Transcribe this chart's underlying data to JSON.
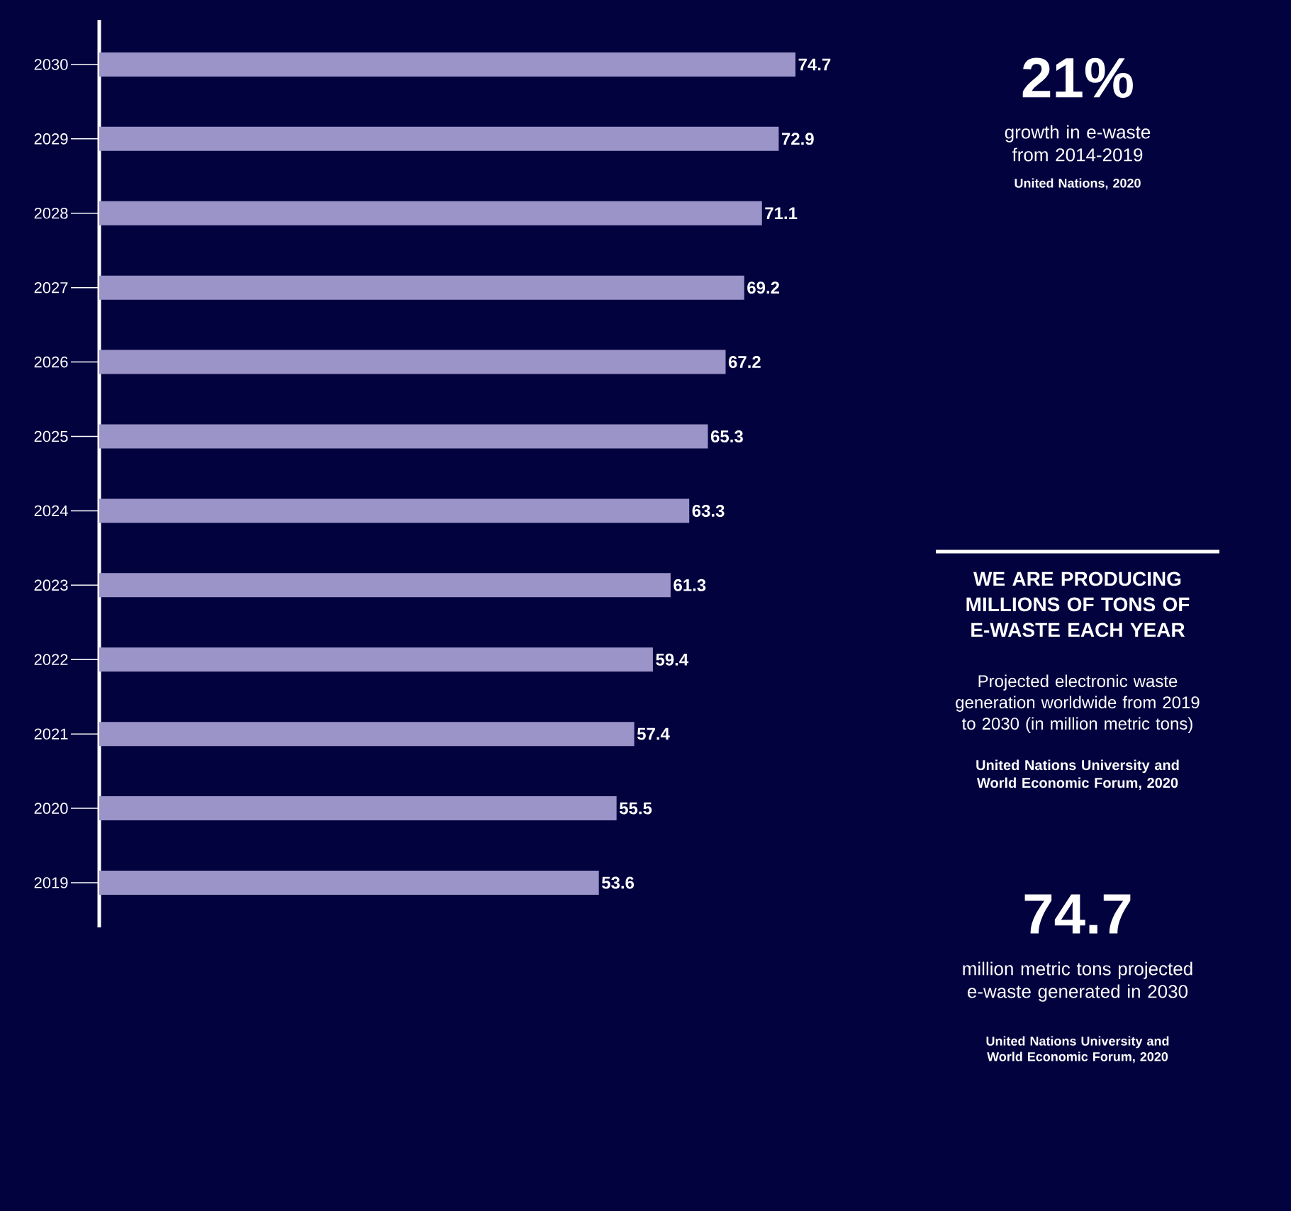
{
  "chart_data": {
    "type": "bar",
    "orientation": "horizontal",
    "title": "WE ARE PRODUCING MILLIONS OF TONS OF E-WASTE EACH YEAR",
    "subtitle": "Projected electronic waste generation worldwide from 2019 to 2030 (in million metric tons)",
    "categories": [
      "2030",
      "2029",
      "2028",
      "2027",
      "2026",
      "2025",
      "2024",
      "2023",
      "2022",
      "2021",
      "2020",
      "2019"
    ],
    "values": [
      74.7,
      72.9,
      71.1,
      69.2,
      67.2,
      65.3,
      63.3,
      61.3,
      59.4,
      57.4,
      55.5,
      53.6
    ],
    "color": "#9a94c8",
    "data_labels": true,
    "tick_labels": "y",
    "annotations": [
      "United Nations University and World Economic Forum, 2020",
      "21%",
      "growth in e-waste from 2014-2019",
      "United Nations, 2020",
      "74.7",
      "million metric tons projected e-waste generated in 2030",
      "United Nations University and World Economic Forum, 2020"
    ]
  }
}
